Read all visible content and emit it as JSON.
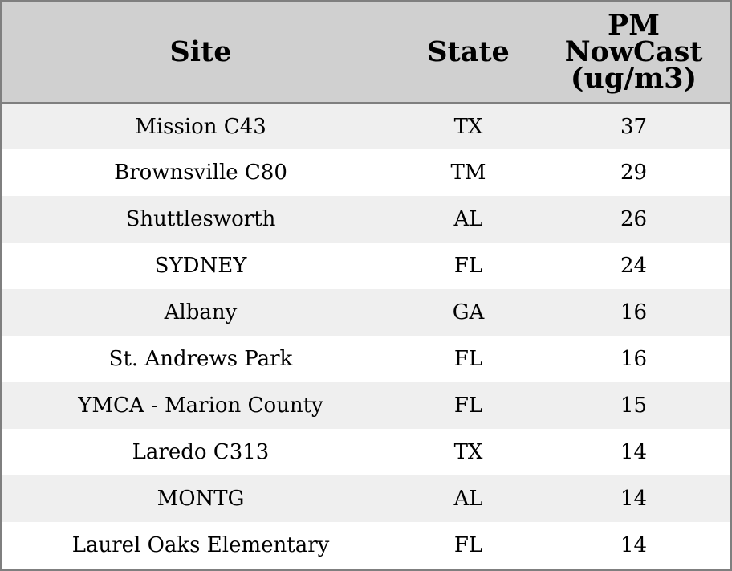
{
  "chart_data": {
    "type": "table",
    "columns": [
      "Site",
      "State",
      "PM NowCast (ug/m3)"
    ],
    "header_lines": {
      "site": "Site",
      "state": "State",
      "pm": [
        "PM",
        "NowCast",
        "(ug/m3)"
      ]
    },
    "rows": [
      {
        "site": "Mission C43",
        "state": "TX",
        "pm": 37
      },
      {
        "site": "Brownsville C80",
        "state": "TM",
        "pm": 29
      },
      {
        "site": "Shuttlesworth",
        "state": "AL",
        "pm": 26
      },
      {
        "site": "SYDNEY",
        "state": "FL",
        "pm": 24
      },
      {
        "site": "Albany",
        "state": "GA",
        "pm": 16
      },
      {
        "site": "St. Andrews Park",
        "state": "FL",
        "pm": 16
      },
      {
        "site": "YMCA - Marion County",
        "state": "FL",
        "pm": 15
      },
      {
        "site": "Laredo C313",
        "state": "TX",
        "pm": 14
      },
      {
        "site": "MONTG",
        "state": "AL",
        "pm": 14
      },
      {
        "site": "Laurel Oaks Elementary",
        "state": "FL",
        "pm": 14
      }
    ],
    "colors": {
      "header_bg": "#d0d0d0",
      "row_alt_bg": "#efefef",
      "row_bg": "#ffffff",
      "border": "#7f7f7f"
    }
  }
}
